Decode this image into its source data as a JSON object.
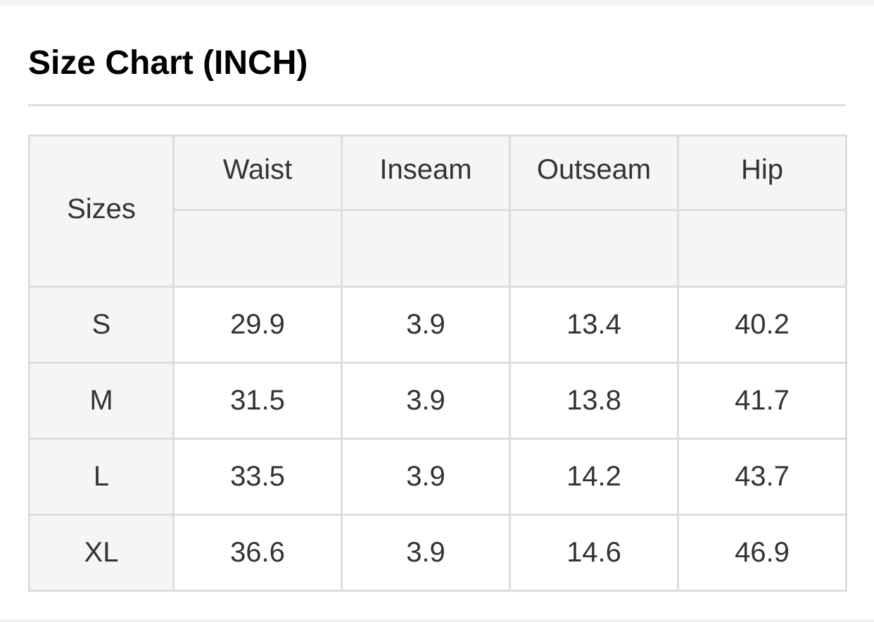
{
  "title": "Size Chart (INCH)",
  "table": {
    "corner_label": "Sizes",
    "columns": [
      "Waist",
      "Inseam",
      "Outseam",
      "Hip"
    ],
    "rows": [
      {
        "size": "S",
        "values": [
          "29.9",
          "3.9",
          "13.4",
          "40.2"
        ]
      },
      {
        "size": "M",
        "values": [
          "31.5",
          "3.9",
          "13.8",
          "41.7"
        ]
      },
      {
        "size": "L",
        "values": [
          "33.5",
          "3.9",
          "14.2",
          "43.7"
        ]
      },
      {
        "size": "XL",
        "values": [
          "36.6",
          "3.9",
          "14.6",
          "46.9"
        ]
      }
    ]
  },
  "colors": {
    "header_bg": "#f5f5f5",
    "border": "#dddddd",
    "text": "#333333",
    "title": "#000000"
  }
}
